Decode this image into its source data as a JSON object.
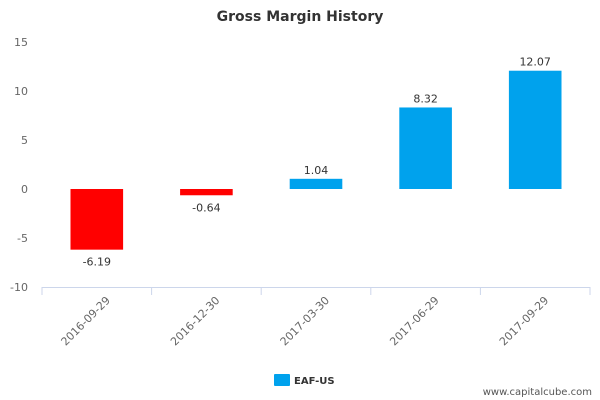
{
  "chart_data": {
    "type": "bar",
    "title": "Gross Margin History",
    "categories": [
      "2016-09-29",
      "2016-12-30",
      "2017-03-30",
      "2017-06-29",
      "2017-09-29"
    ],
    "series": [
      {
        "name": "EAF-US",
        "values": [
          -6.19,
          -0.64,
          1.04,
          8.32,
          12.07
        ],
        "labels": [
          "-6.19",
          "-0.64",
          "1.04",
          "8.32",
          "12.07"
        ],
        "color": "#00a2ed",
        "negative_color": "#ff0000"
      }
    ],
    "ylim": [
      -10,
      15
    ],
    "yticks": [
      15,
      10,
      5,
      0,
      -5,
      -10
    ],
    "ytick_labels": [
      "15",
      "10",
      "5",
      "0",
      "-5",
      "-10"
    ],
    "xlabel": "",
    "ylabel": "",
    "legend_position": "bottom-center"
  },
  "watermark": "www.capitalcube.com",
  "colors": {
    "axis": "#ccd6eb",
    "tick_text": "#666666"
  }
}
